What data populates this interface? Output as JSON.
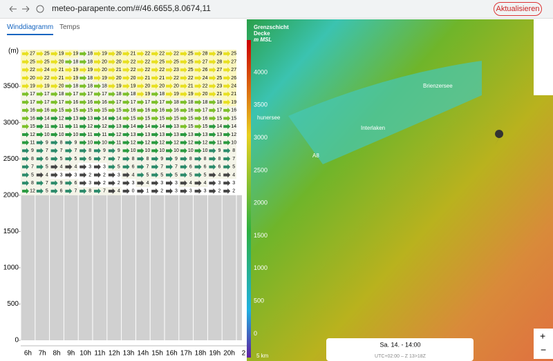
{
  "browser": {
    "url": "meteo-parapente.com/#/46.6655,8.0674,11",
    "update_button": "Aktualisieren"
  },
  "tabs": [
    "Winddiagramm",
    "Temps"
  ],
  "diagram": {
    "unit_label": "(m)",
    "ylim": [
      0,
      4100
    ],
    "yticks": [
      0,
      500,
      1000,
      1500,
      2000,
      2500,
      3000,
      3500
    ],
    "hours": [
      "6h",
      "7h",
      "8h",
      "9h",
      "10h",
      "11h",
      "12h",
      "13h",
      "14h",
      "15h",
      "16h",
      "17h",
      "18h",
      "19h",
      "20h",
      "2"
    ],
    "wind_rows": [
      [
        27,
        25,
        19,
        19,
        18,
        19,
        20,
        21,
        22,
        22,
        22,
        25,
        28,
        29,
        25
      ],
      [
        25,
        25,
        20,
        18,
        18,
        20,
        20,
        22,
        22,
        25,
        25,
        25,
        27,
        28,
        27
      ],
      [
        22,
        24,
        21,
        19,
        19,
        20,
        21,
        22,
        22,
        22,
        23,
        25,
        26,
        27,
        27
      ],
      [
        20,
        22,
        21,
        19,
        18,
        19,
        20,
        20,
        21,
        21,
        22,
        22,
        24,
        25,
        26
      ],
      [
        19,
        19,
        20,
        18,
        18,
        18,
        19,
        19,
        20,
        20,
        20,
        21,
        22,
        23,
        24
      ],
      [
        17,
        17,
        18,
        17,
        17,
        17,
        18,
        18,
        19,
        18,
        19,
        19,
        20,
        21,
        21
      ],
      [
        17,
        17,
        17,
        16,
        16,
        16,
        17,
        17,
        17,
        17,
        18,
        18,
        18,
        18,
        19
      ],
      [
        16,
        16,
        15,
        15,
        15,
        15,
        15,
        16,
        16,
        16,
        16,
        16,
        17,
        17,
        16
      ],
      [
        16,
        14,
        12,
        13,
        13,
        14,
        14,
        15,
        15,
        15,
        15,
        15,
        16,
        15,
        15
      ],
      [
        15,
        11,
        11,
        11,
        12,
        12,
        13,
        14,
        14,
        14,
        13,
        15,
        15,
        14,
        14
      ],
      [
        12,
        10,
        10,
        10,
        11,
        11,
        12,
        13,
        13,
        13,
        13,
        13,
        13,
        13,
        12
      ],
      [
        11,
        9,
        8,
        9,
        10,
        10,
        11,
        12,
        12,
        12,
        12,
        12,
        12,
        11,
        10
      ],
      [
        9,
        7,
        7,
        7,
        8,
        9,
        9,
        10,
        10,
        10,
        10,
        10,
        10,
        9,
        8
      ],
      [
        8,
        6,
        5,
        5,
        6,
        7,
        7,
        8,
        8,
        9,
        9,
        8,
        8,
        8,
        7
      ],
      [
        7,
        5,
        4,
        4,
        3,
        3,
        5,
        6,
        7,
        7,
        7,
        6,
        6,
        6,
        5
      ],
      [
        5,
        4,
        3,
        3,
        2,
        2,
        3,
        4,
        5,
        5,
        5,
        5,
        5,
        4,
        4
      ],
      [
        8,
        7,
        9,
        6,
        3,
        2,
        2,
        3,
        4,
        3,
        3,
        4,
        4,
        3,
        3
      ],
      [
        12,
        5,
        6,
        7,
        8,
        7,
        4,
        0,
        1,
        2,
        3,
        3,
        3,
        2,
        2
      ]
    ]
  },
  "map": {
    "title": [
      "Grenzschicht",
      "Decke",
      "m MSL"
    ],
    "scale": [
      4000,
      3500,
      3000,
      2500,
      2000,
      1500,
      1000,
      500,
      0
    ],
    "places": [
      "Brienzersee",
      "Interlaken",
      "hunersee",
      "A8"
    ],
    "scale_bar": "5 km",
    "time": "Sa. 14. - 14:00",
    "timezone": "UTC+02:00 – Z 13>18Z"
  }
}
